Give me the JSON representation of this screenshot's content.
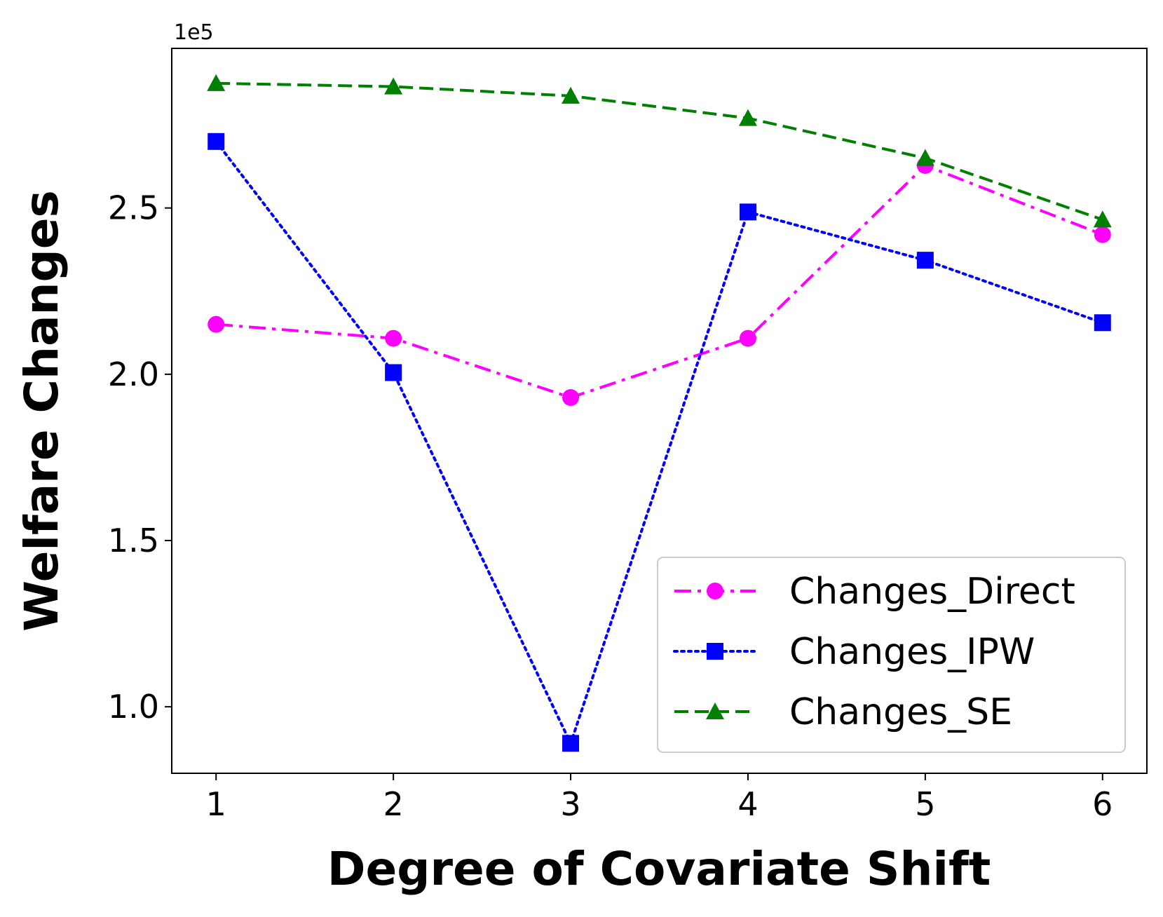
{
  "chart_data": {
    "type": "line",
    "title": "",
    "xlabel": "Degree of Covariate Shift",
    "ylabel": "Welfare Changes",
    "y_offset_label": "1e5",
    "x": [
      1,
      2,
      3,
      4,
      5,
      6
    ],
    "x_ticks": [
      "1",
      "2",
      "3",
      "4",
      "5",
      "6"
    ],
    "xlim": [
      0.75,
      6.25
    ],
    "ylim": [
      80000,
      298000
    ],
    "y_ticks": [
      {
        "value": 100000,
        "label": "1.0"
      },
      {
        "value": 150000,
        "label": "1.5"
      },
      {
        "value": 200000,
        "label": "2.0"
      },
      {
        "value": 250000,
        "label": "2.5"
      }
    ],
    "grid": false,
    "legend_position": "lower-right",
    "series": [
      {
        "name": "Changes_Direct",
        "values": [
          215000,
          210800,
          193000,
          210800,
          262800,
          242000
        ],
        "color": "#ff00ff",
        "linestyle": "dashdot",
        "marker": "circle"
      },
      {
        "name": "Changes_IPW",
        "values": [
          270000,
          200500,
          89000,
          248800,
          234300,
          215500
        ],
        "color": "#0000ff",
        "linestyle": "dotted",
        "marker": "square"
      },
      {
        "name": "Changes_SE",
        "values": [
          287500,
          286500,
          283700,
          277000,
          265000,
          246500
        ],
        "color": "#008000",
        "linestyle": "dashed",
        "marker": "triangle"
      }
    ]
  }
}
